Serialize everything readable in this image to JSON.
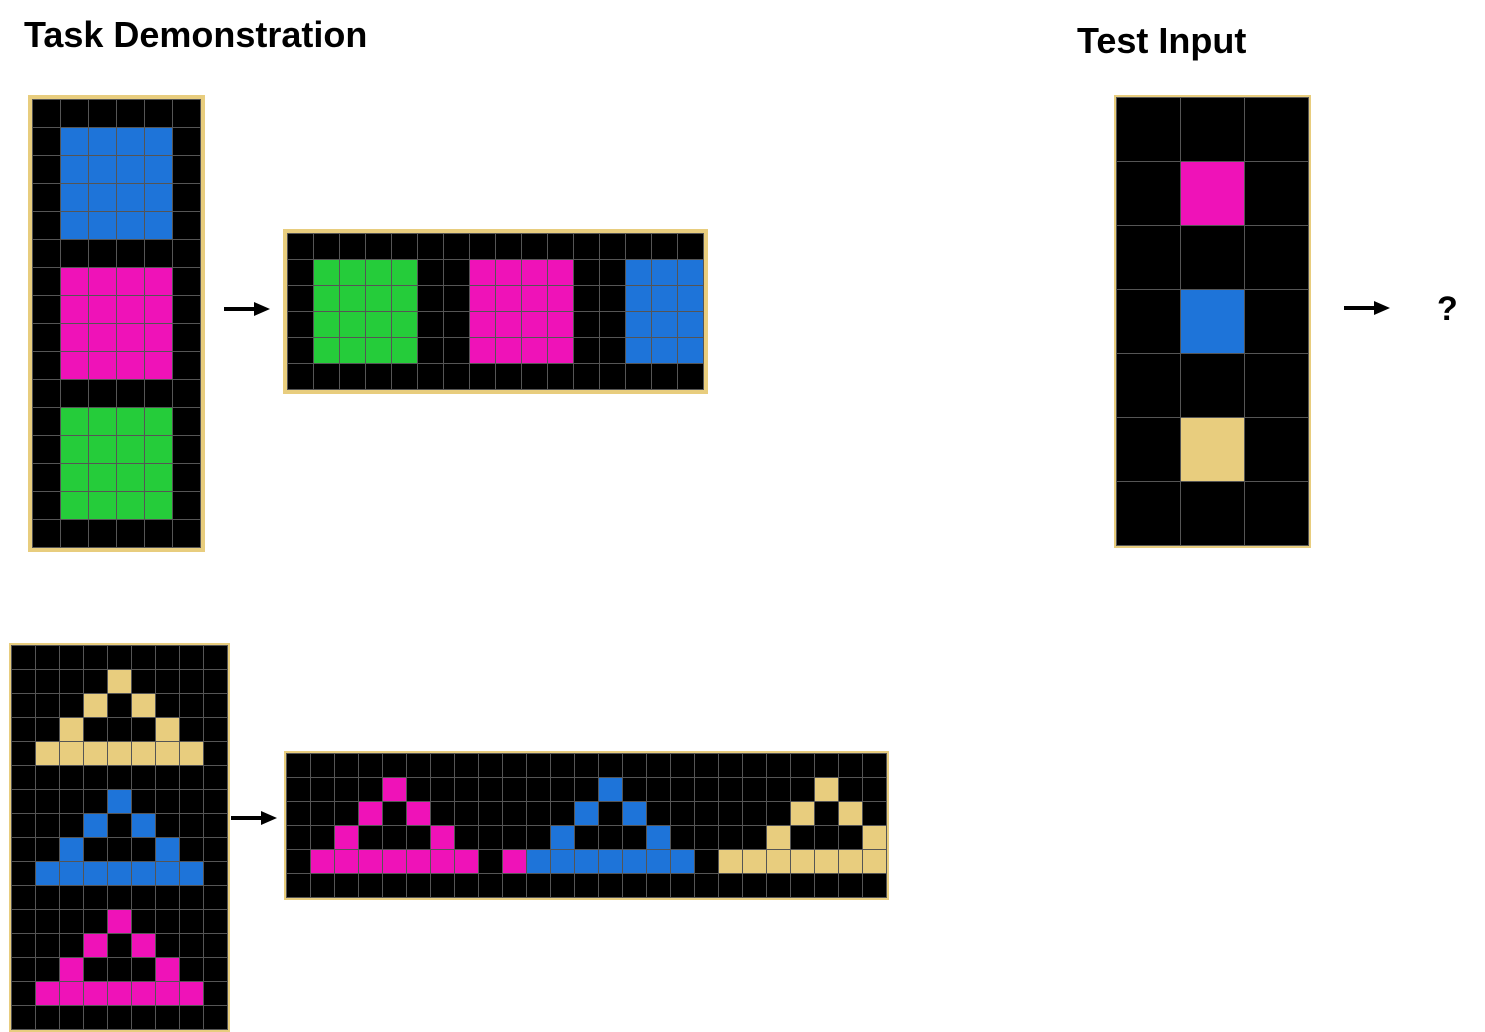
{
  "titles": {
    "demo": "Task Demonstration",
    "test": "Test Input"
  },
  "question_mark": "?",
  "palette": {
    "0": "#000000",
    "1": "#1e74d9",
    "2": "#ef12b8",
    "3": "#25cc3a",
    "4": "#e8cd7e"
  },
  "grids": {
    "pair1_input": [
      "000000",
      "011110",
      "011110",
      "011110",
      "011110",
      "000000",
      "022220",
      "022220",
      "022220",
      "022220",
      "000000",
      "033330",
      "033330",
      "033330",
      "033330",
      "000000"
    ],
    "pair1_output": [
      "0000000000000000",
      "0333300222200111",
      "0333300222200111",
      "0333300222200111",
      "0333300222200111",
      "0000000000000000"
    ],
    "pair2_input": [
      "000000000",
      "000040000",
      "000404000",
      "004000400",
      "044444440",
      "000000000",
      "000010000",
      "000101000",
      "001000100",
      "011111110",
      "000000000",
      "000020000",
      "000202000",
      "002000200",
      "022222220",
      "000000000"
    ],
    "pair2_output": [
      "0000000000000000000000000",
      "0000200000000100000000400",
      "0002020000001010000004040",
      "0020002000010001000040004",
      "0222222202111111104444444",
      "0000000000000000000000000"
    ],
    "test_input": [
      "000",
      "020",
      "000",
      "010",
      "000",
      "040",
      "000"
    ]
  }
}
